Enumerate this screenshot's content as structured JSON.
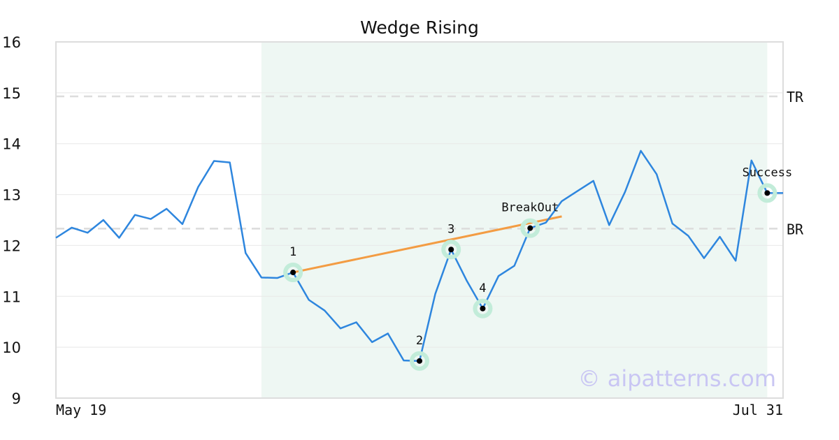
{
  "chart_data": {
    "type": "line",
    "title": "Wedge Rising",
    "xlabel": "",
    "ylabel": "",
    "ylim": [
      9,
      16
    ],
    "yticks": [
      9,
      10,
      11,
      12,
      13,
      14,
      15,
      16
    ],
    "x_tick_labels": [
      "May 19",
      "Jul 31"
    ],
    "grid": "horizontal",
    "series": [
      {
        "type": "line",
        "color": "#2e86de",
        "values": [
          12.15,
          12.35,
          12.25,
          12.5,
          12.15,
          12.6,
          12.52,
          12.72,
          12.42,
          13.15,
          13.66,
          13.63,
          11.85,
          11.37,
          11.36,
          11.47,
          10.93,
          10.72,
          10.37,
          10.49,
          10.1,
          10.27,
          9.74,
          9.73,
          11.05,
          11.92,
          11.3,
          10.76,
          11.4,
          11.6,
          12.34,
          12.45,
          12.87,
          13.07,
          13.27,
          12.4,
          13.05,
          13.86,
          13.4,
          12.43,
          12.19,
          11.75,
          12.17,
          11.7,
          13.67,
          13.03,
          13.03
        ]
      }
    ],
    "pattern_region": {
      "start_index": 13,
      "end_index": 45,
      "color": "#eef7f3"
    },
    "levels": [
      {
        "label": "TR",
        "value": 14.93
      },
      {
        "label": "BR",
        "value": 12.33
      }
    ],
    "trendline": {
      "color": "#f39c43",
      "from": {
        "index": 15,
        "value": 11.47
      },
      "to": {
        "index": 32,
        "value": 12.57
      }
    },
    "points": [
      {
        "label": "1",
        "index": 15,
        "value": 11.47
      },
      {
        "label": "2",
        "index": 23,
        "value": 9.73
      },
      {
        "label": "3",
        "index": 25,
        "value": 11.92
      },
      {
        "label": "4",
        "index": 27,
        "value": 10.76
      },
      {
        "label": "BreakOut",
        "index": 30,
        "value": 12.34
      },
      {
        "label": "Success",
        "index": 45,
        "value": 13.03
      }
    ],
    "watermark": "© aipatterns.com"
  }
}
